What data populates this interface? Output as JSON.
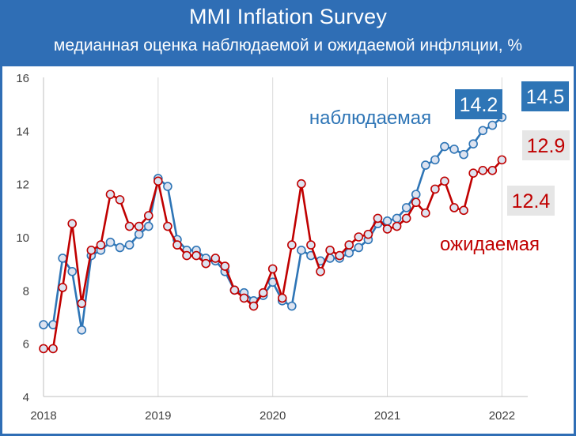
{
  "header": {
    "title": "MMI Inflation Survey",
    "subtitle": "медианная оценка наблюдаемой и ожидаемой инфляции, %"
  },
  "colors": {
    "background": "#2f6eb5",
    "observed": "#2e75b6",
    "expected": "#c00000",
    "marker_fill": "#dde3f0",
    "grid": "#d9d9d9"
  },
  "chart_data": {
    "type": "line",
    "title": "MMI Inflation Survey",
    "subtitle": "медианная оценка наблюдаемой и ожидаемой инфляции, %",
    "xlabel": "",
    "ylabel": "",
    "ylim": [
      4,
      16
    ],
    "yticks": [
      4,
      6,
      8,
      10,
      12,
      14,
      16
    ],
    "xlim": [
      2018,
      2022.17
    ],
    "xticks": [
      2018,
      2019,
      2020,
      2021,
      2022
    ],
    "xtick_labels": [
      "2018",
      "2019",
      "2020",
      "2021",
      "2022"
    ],
    "grid": "vertical",
    "x_step_months": 1,
    "series": [
      {
        "name": "наблюдаемая",
        "color": "#2e75b6",
        "start": 2018.0,
        "values": [
          6.7,
          6.7,
          9.2,
          8.7,
          6.5,
          9.3,
          9.5,
          9.8,
          9.6,
          9.7,
          10.1,
          10.4,
          12.2,
          11.9,
          9.9,
          9.5,
          9.5,
          9.2,
          9.1,
          8.7,
          8.0,
          7.9,
          7.6,
          7.8,
          8.3,
          7.6,
          7.4,
          9.5,
          9.3,
          9.1,
          9.2,
          9.2,
          9.4,
          9.6,
          9.9,
          10.5,
          10.6,
          10.7,
          11.1,
          11.6,
          12.7,
          12.9,
          13.4,
          13.3,
          13.1,
          13.5,
          14.0,
          14.2,
          14.5
        ],
        "end_label": "14.5",
        "labels": [
          {
            "text": "14.2",
            "style": "boxed"
          },
          {
            "text": "14.5",
            "style": "boxed"
          }
        ]
      },
      {
        "name": "ожидаемая",
        "color": "#c00000",
        "start": 2018.0,
        "values": [
          5.8,
          5.8,
          8.1,
          10.5,
          7.5,
          9.5,
          9.7,
          11.6,
          11.4,
          10.4,
          10.4,
          10.8,
          12.1,
          10.4,
          9.7,
          9.3,
          9.3,
          9.0,
          9.2,
          8.9,
          8.0,
          7.7,
          7.4,
          7.9,
          8.8,
          7.7,
          9.7,
          12.0,
          9.7,
          8.7,
          9.5,
          9.3,
          9.7,
          10.0,
          10.1,
          10.7,
          10.3,
          10.4,
          10.7,
          11.3,
          10.9,
          11.8,
          12.1,
          11.1,
          11.0,
          12.4,
          12.5,
          12.5,
          12.9
        ],
        "labels": [
          {
            "text": "12.9",
            "style": "shaded"
          },
          {
            "text": "12.4",
            "style": "shaded"
          }
        ]
      }
    ]
  }
}
